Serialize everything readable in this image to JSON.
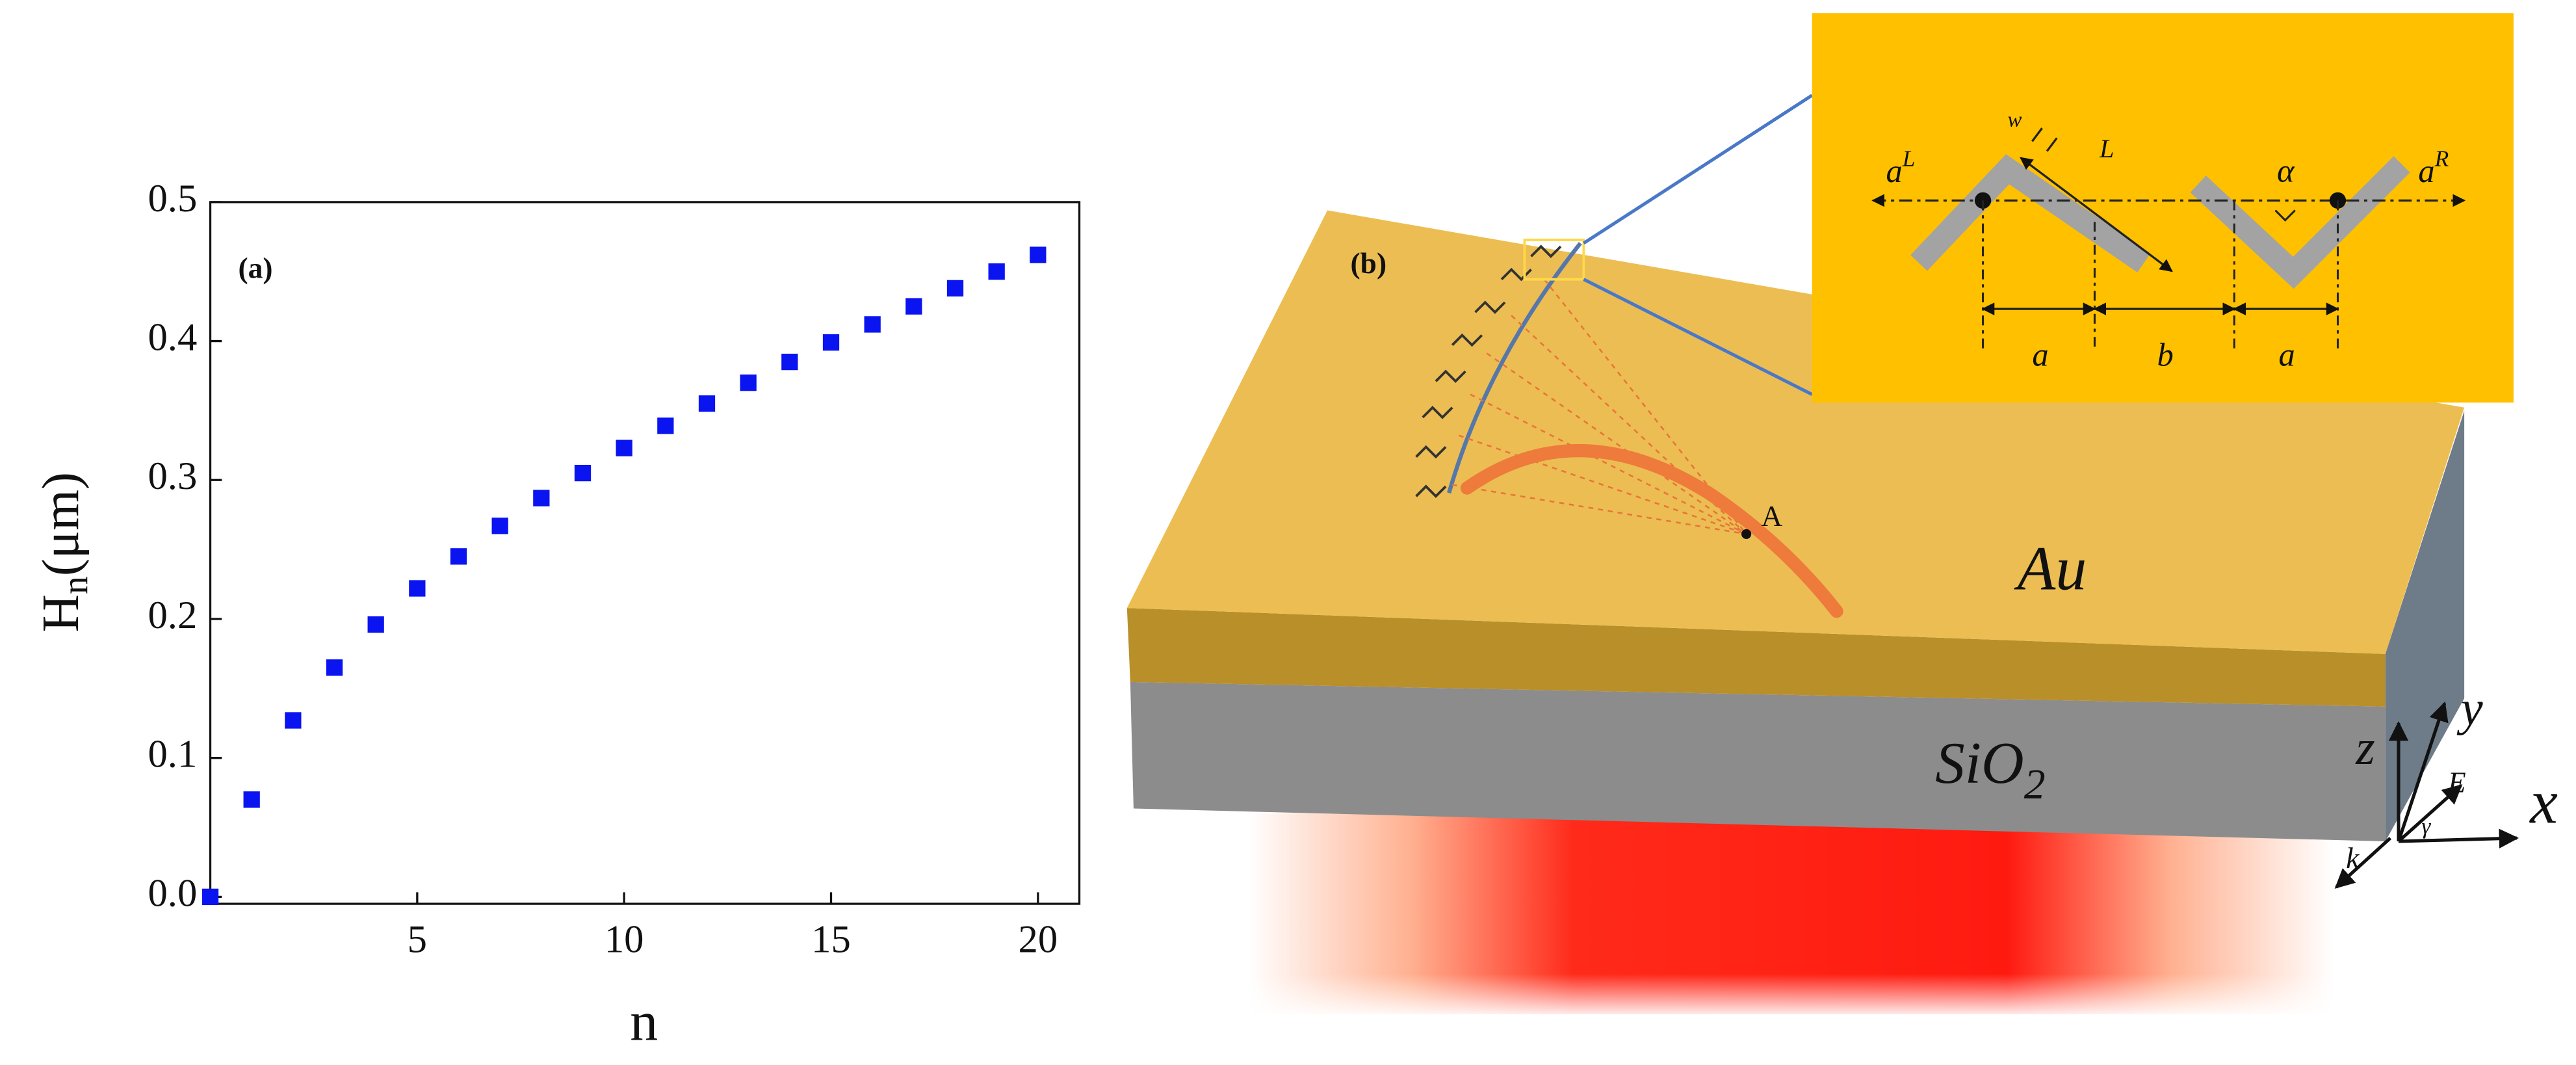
{
  "chart_data": {
    "type": "scatter",
    "panel_label": "(a)",
    "ylabel": {
      "main": "H",
      "sub": "n",
      "unit": "(μm)"
    },
    "xlabel": "n",
    "x": [
      0,
      1,
      2,
      3,
      4,
      5,
      6,
      7,
      8,
      9,
      10,
      11,
      12,
      13,
      14,
      15,
      16,
      17,
      18,
      19,
      20
    ],
    "values": [
      0,
      0.07,
      0.127,
      0.165,
      0.196,
      0.222,
      0.245,
      0.267,
      0.287,
      0.305,
      0.323,
      0.339,
      0.355,
      0.37,
      0.385,
      0.399,
      0.412,
      0.425,
      0.438,
      0.45,
      0.462
    ],
    "color": "#0a14f0",
    "xlim": [
      0,
      21
    ],
    "xticks": [
      5,
      10,
      15,
      20
    ],
    "ylim": [
      -0.005,
      0.5
    ],
    "yticks": [
      {
        "value": 0,
        "label": "0.0"
      },
      0.1,
      0.2,
      0.3,
      0.4,
      0.5
    ]
  },
  "diagram": {
    "panel_label": "(b)",
    "point": "A",
    "top_layer": "Au",
    "bottom_layer": {
      "main": "SiO",
      "sub": "2"
    },
    "inset": {
      "left_wave": {
        "main": "a",
        "sup": "L"
      },
      "right_wave": {
        "main": "a",
        "sup": "R"
      },
      "length": "L",
      "width": "w",
      "angle": "α",
      "gaps": [
        "a",
        "b",
        "a"
      ]
    },
    "axes": {
      "z": "z",
      "y": "y",
      "x": "x",
      "field": "E",
      "wavevector": "k",
      "polarization": "γ"
    }
  }
}
